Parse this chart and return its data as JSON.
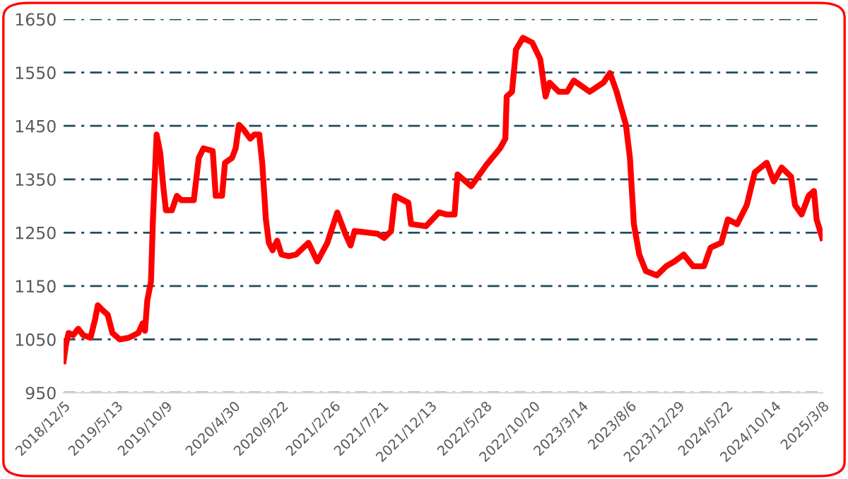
{
  "chart_data": {
    "type": "line",
    "x": [
      "2018-12-05",
      "2018-12-12",
      "2018-12-20",
      "2019-01-03",
      "2019-01-18",
      "2019-02-02",
      "2019-02-24",
      "2019-03-10",
      "2019-03-18",
      "2019-04-01",
      "2019-04-17",
      "2019-05-01",
      "2019-05-23",
      "2019-06-19",
      "2019-07-18",
      "2019-07-31",
      "2019-08-07",
      "2019-08-14",
      "2019-08-25",
      "2019-08-31",
      "2019-09-11",
      "2019-09-22",
      "2019-10-01",
      "2019-10-09",
      "2019-10-27",
      "2019-11-11",
      "2019-11-24",
      "2020-01-01",
      "2020-01-16",
      "2020-01-30",
      "2020-02-27",
      "2020-03-07",
      "2020-03-26",
      "2020-04-04",
      "2020-04-25",
      "2020-05-06",
      "2020-05-16",
      "2020-05-30",
      "2020-06-19",
      "2020-07-02",
      "2020-07-16",
      "2020-07-25",
      "2020-08-05",
      "2020-08-14",
      "2020-08-25",
      "2020-09-08",
      "2020-09-21",
      "2020-10-13",
      "2020-11-04",
      "2020-12-11",
      "2021-01-07",
      "2021-02-06",
      "2021-03-08",
      "2021-04-01",
      "2021-04-17",
      "2021-04-29",
      "2021-07-07",
      "2021-07-27",
      "2021-08-17",
      "2021-08-29",
      "2021-10-08",
      "2021-10-16",
      "2021-11-30",
      "2022-01-08",
      "2022-01-31",
      "2022-02-24",
      "2022-03-05",
      "2022-04-15",
      "2022-05-31",
      "2022-07-11",
      "2022-07-27",
      "2022-07-31",
      "2022-08-16",
      "2022-08-28",
      "2022-09-18",
      "2022-10-16",
      "2022-11-09",
      "2022-11-25",
      "2022-12-07",
      "2023-01-04",
      "2023-01-29",
      "2023-02-18",
      "2023-04-07",
      "2023-05-18",
      "2023-06-07",
      "2023-06-27",
      "2023-07-25",
      "2023-08-06",
      "2023-08-18",
      "2023-09-03",
      "2023-09-23",
      "2023-10-26",
      "2023-11-23",
      "2023-12-18",
      "2024-01-15",
      "2024-02-12",
      "2024-03-16",
      "2024-04-05",
      "2024-05-07",
      "2024-05-27",
      "2024-06-24",
      "2024-07-23",
      "2024-08-16",
      "2024-09-21",
      "2024-10-12",
      "2024-11-05",
      "2024-12-03",
      "2024-12-15",
      "2025-01-04",
      "2025-01-25",
      "2025-02-10",
      "2025-02-18",
      "2025-03-07"
    ],
    "series": [
      {
        "color": "#ff0000",
        "values": [
          1009,
          1040,
          1062,
          1058,
          1070,
          1058,
          1053,
          1088,
          1114,
          1105,
          1096,
          1062,
          1050,
          1053,
          1062,
          1080,
          1066,
          1123,
          1158,
          1275,
          1434,
          1399,
          1337,
          1292,
          1292,
          1319,
          1311,
          1311,
          1390,
          1408,
          1403,
          1319,
          1319,
          1381,
          1390,
          1408,
          1452,
          1443,
          1426,
          1434,
          1434,
          1381,
          1275,
          1231,
          1217,
          1235,
          1209,
          1206,
          1209,
          1231,
          1196,
          1231,
          1288,
          1248,
          1226,
          1253,
          1248,
          1240,
          1253,
          1319,
          1306,
          1266,
          1262,
          1288,
          1284,
          1284,
          1359,
          1337,
          1377,
          1408,
          1426,
          1505,
          1514,
          1593,
          1615,
          1606,
          1575,
          1505,
          1531,
          1514,
          1514,
          1535,
          1514,
          1531,
          1549,
          1514,
          1452,
          1390,
          1266,
          1209,
          1178,
          1170,
          1187,
          1196,
          1209,
          1187,
          1187,
          1222,
          1231,
          1275,
          1266,
          1302,
          1363,
          1381,
          1346,
          1372,
          1355,
          1302,
          1284,
          1319,
          1328,
          1275,
          1240
        ]
      }
    ],
    "xlim": [
      "2018-12-05",
      "2025-03-08"
    ],
    "xticks": [
      {
        "value": "2018-12-05",
        "label": "2018/12/5"
      },
      {
        "value": "2019-05-13",
        "label": "2019/5/13"
      },
      {
        "value": "2019-10-09",
        "label": "2019/10/9"
      },
      {
        "value": "2020-04-30",
        "label": "2020/4/30"
      },
      {
        "value": "2020-09-22",
        "label": "2020/9/22"
      },
      {
        "value": "2021-02-26",
        "label": "2021/2/26"
      },
      {
        "value": "2021-07-21",
        "label": "2021/7/21"
      },
      {
        "value": "2021-12-13",
        "label": "2021/12/13"
      },
      {
        "value": "2022-05-28",
        "label": "2022/5/28"
      },
      {
        "value": "2022-10-20",
        "label": "2022/10/20"
      },
      {
        "value": "2023-03-14",
        "label": "2023/3/14"
      },
      {
        "value": "2023-08-06",
        "label": "2023/8/6"
      },
      {
        "value": "2023-12-29",
        "label": "2023/12/29"
      },
      {
        "value": "2024-05-22",
        "label": "2024/5/22"
      },
      {
        "value": "2024-10-14",
        "label": "2024/10/14"
      },
      {
        "value": "2025-03-08",
        "label": "2025/3/8"
      }
    ],
    "ylim": [
      950,
      1650
    ],
    "yticks": [
      950,
      1050,
      1150,
      1250,
      1350,
      1450,
      1550,
      1650
    ],
    "grid": "y",
    "line_style": "solid",
    "marker": "none"
  }
}
